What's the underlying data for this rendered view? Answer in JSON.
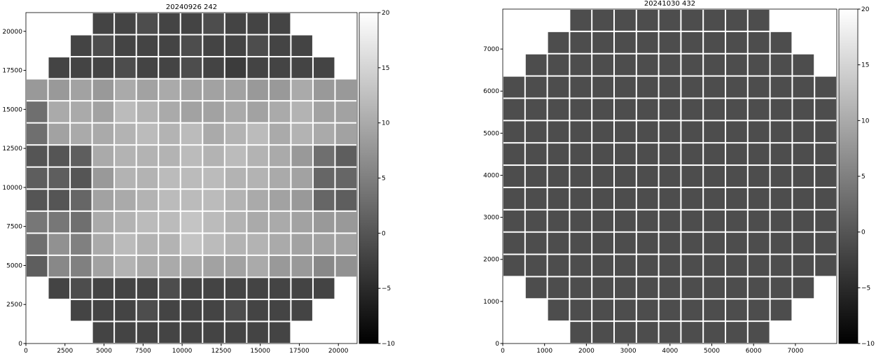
{
  "chart_data": [
    {
      "type": "image",
      "title": "20240926 242",
      "colormap": "gray",
      "xlim": [
        0,
        21200
      ],
      "ylim": [
        0,
        21200
      ],
      "xticks": [
        0,
        2500,
        5000,
        7500,
        10000,
        12500,
        15000,
        17500,
        20000
      ],
      "yticks": [
        0,
        2500,
        5000,
        7500,
        10000,
        12500,
        15000,
        17500,
        20000
      ],
      "clim": [
        -10,
        20
      ],
      "cticks": [
        {
          "value": -10,
          "label": "−10"
        },
        {
          "value": -5,
          "label": "−5"
        },
        0,
        5,
        10,
        15,
        20
      ],
      "z": [
        [
          null,
          null,
          null,
          -2,
          -2,
          -1,
          -2,
          -2,
          -1,
          -2,
          -2,
          -2,
          null,
          null,
          null
        ],
        [
          null,
          null,
          -2,
          -1,
          -2,
          -2,
          -2,
          -1,
          -2,
          -2,
          -1,
          -2,
          -2,
          null,
          null
        ],
        [
          null,
          -2,
          -2,
          -2,
          -1,
          -2,
          -2,
          -1,
          -2,
          -3,
          -2,
          -2,
          -2,
          -2,
          null
        ],
        [
          8,
          8,
          9,
          8,
          10,
          9,
          10,
          9,
          9,
          9,
          8,
          8,
          10,
          8,
          8
        ],
        [
          3,
          10,
          10,
          9,
          12,
          11,
          10,
          9,
          9,
          10,
          9,
          10,
          11,
          9,
          9
        ],
        [
          3,
          9,
          10,
          10,
          11,
          12,
          11,
          12,
          10,
          11,
          12,
          10,
          11,
          10,
          9
        ],
        [
          0,
          0,
          1,
          10,
          11,
          11,
          11,
          12,
          11,
          12,
          11,
          10,
          8,
          3,
          1
        ],
        [
          1,
          1,
          0,
          8,
          11,
          11,
          12,
          12,
          12,
          11,
          11,
          10,
          9,
          2,
          2
        ],
        [
          0,
          0,
          2,
          9,
          10,
          11,
          12,
          12,
          12,
          11,
          10,
          9,
          8,
          2,
          1
        ],
        [
          4,
          4,
          3,
          10,
          11,
          12,
          12,
          13,
          12,
          11,
          10,
          10,
          9,
          8,
          8
        ],
        [
          3,
          7,
          5,
          10,
          12,
          11,
          11,
          13,
          12,
          11,
          11,
          10,
          9,
          9,
          9
        ],
        [
          1,
          6,
          5,
          9,
          11,
          10,
          10,
          10,
          9,
          9,
          10,
          8,
          8,
          6,
          7
        ],
        [
          null,
          -2,
          -1,
          -2,
          -2,
          -2,
          -1,
          -2,
          -2,
          -2,
          -2,
          -2,
          -2,
          -2,
          null
        ],
        [
          null,
          null,
          -2,
          -2,
          -2,
          -1,
          -2,
          -2,
          -2,
          -1,
          -2,
          -2,
          -2,
          null,
          null
        ],
        [
          null,
          null,
          null,
          -2,
          -2,
          -2,
          -2,
          -2,
          -2,
          -2,
          -2,
          -2,
          null,
          null,
          null
        ]
      ]
    },
    {
      "type": "image",
      "title": "20241030 432",
      "colormap": "gray",
      "xlim": [
        0,
        7990
      ],
      "ylim": [
        0,
        7950
      ],
      "xticks": [
        0,
        1000,
        2000,
        3000,
        4000,
        5000,
        6000,
        7000
      ],
      "yticks": [
        0,
        1000,
        2000,
        3000,
        4000,
        5000,
        6000,
        7000
      ],
      "clim": [
        -10,
        20
      ],
      "cticks": [
        {
          "value": -10,
          "label": "−10"
        },
        {
          "value": -5,
          "label": "−5"
        },
        0,
        5,
        10,
        15,
        20
      ],
      "z": [
        [
          null,
          null,
          null,
          -1,
          -1,
          -1,
          -1,
          -1,
          -1,
          -1,
          -1,
          -1,
          null,
          null,
          null
        ],
        [
          null,
          null,
          -1,
          -1,
          -1,
          -1,
          -1,
          -1,
          -1,
          -1,
          -1,
          -1,
          -1,
          null,
          null
        ],
        [
          null,
          -1,
          -1,
          -1,
          -1,
          -1,
          -1,
          -1,
          -1,
          -1,
          -1,
          -1,
          -1,
          -1,
          null
        ],
        [
          -1,
          -1,
          -1,
          -1,
          -1,
          -1,
          -1,
          -1,
          -1,
          -1,
          -1,
          -1,
          -1,
          -1,
          -1
        ],
        [
          -1,
          -1,
          -1,
          -1,
          -1,
          -1,
          -1,
          -1,
          -1,
          -1,
          -1,
          -1,
          -1,
          -1,
          -1
        ],
        [
          -1,
          -1,
          -1,
          -1,
          -1,
          -1,
          -1,
          -1,
          -1,
          -1,
          -1,
          -1,
          -1,
          -1,
          -1
        ],
        [
          -1,
          -1,
          -1,
          -1,
          -1,
          -1,
          -1,
          -1,
          -1,
          -1,
          -1,
          -1,
          -1,
          -1,
          -1
        ],
        [
          -1,
          -1,
          -1,
          -1,
          -1,
          -1,
          -1,
          -1,
          -1,
          -1,
          -1,
          -1,
          -1,
          -1,
          -1
        ],
        [
          -1,
          -1,
          -1,
          -1,
          -1,
          -1,
          -1,
          -1,
          -1,
          -1,
          -1,
          -1,
          -1,
          -1,
          -1
        ],
        [
          -1,
          -1,
          -1,
          -1,
          -1,
          -1,
          -1,
          -1,
          -1,
          -1,
          -1,
          -1,
          -1,
          -1,
          -1
        ],
        [
          -1,
          -1,
          -1,
          -1,
          -1,
          -1,
          -1,
          -1,
          -1,
          -1,
          -1,
          -1,
          -1,
          -1,
          -1
        ],
        [
          -1,
          -1,
          -1,
          -1,
          -1,
          -1,
          -1,
          -1,
          -1,
          -1,
          -1,
          -1,
          -1,
          -1,
          -1
        ],
        [
          null,
          -1,
          -1,
          -1,
          -1,
          -1,
          -1,
          -1,
          -1,
          -1,
          -1,
          -1,
          -1,
          -1,
          null
        ],
        [
          null,
          null,
          -1,
          -1,
          -1,
          -1,
          -1,
          -1,
          -1,
          -1,
          -1,
          -1,
          -1,
          null,
          null
        ],
        [
          null,
          null,
          null,
          -1,
          -1,
          -1,
          -1,
          -1,
          -1,
          -1,
          -1,
          -1,
          null,
          null,
          null
        ]
      ]
    }
  ]
}
